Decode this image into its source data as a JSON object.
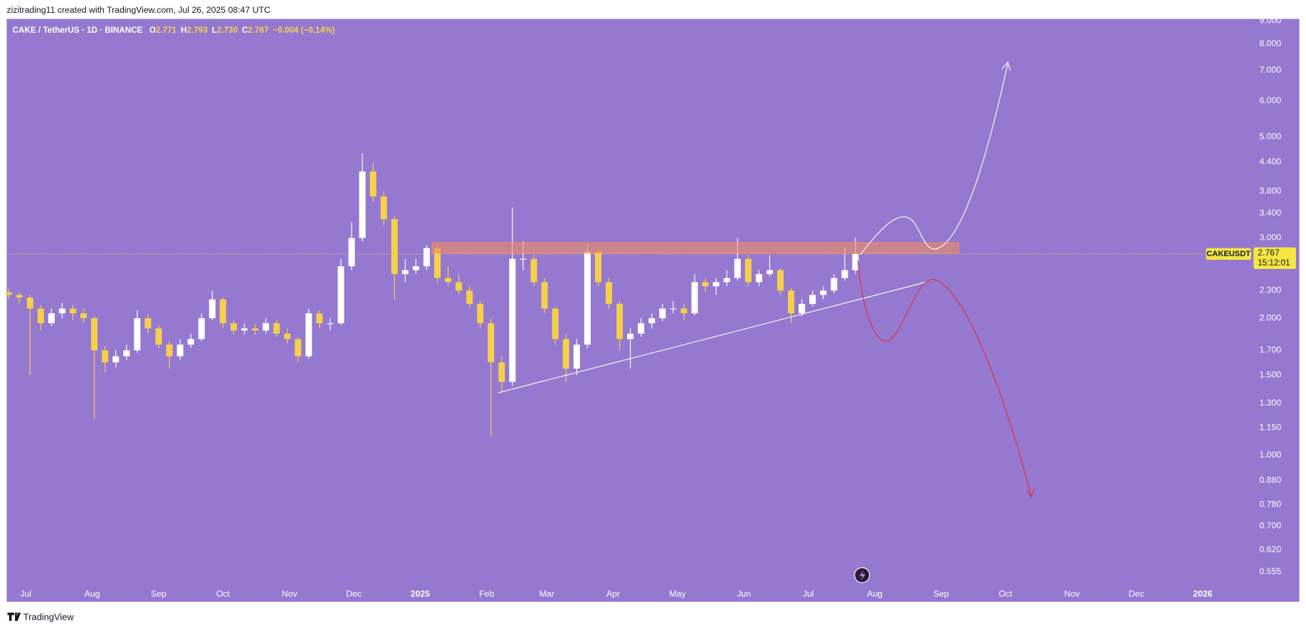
{
  "chart_data": {
    "type": "candlestick",
    "header": "zizitrading11 created with TradingView.com, Jul 26, 2025 08:47 UTC",
    "symbol": "CAKE / TetherUS · 1D · BINANCE",
    "ohlc_legend": [
      {
        "label": "O",
        "value": "2.771"
      },
      {
        "label": "H",
        "value": "2.793"
      },
      {
        "label": "L",
        "value": "2.730"
      },
      {
        "label": "C",
        "value": "2.767"
      }
    ],
    "change": "−0.004 (−0.14%)",
    "price_tag": {
      "ticker": "CAKEUSDT",
      "price": "2.767",
      "countdown": "15:12:01"
    },
    "footer": "TradingView",
    "log_scale": true,
    "grid": false,
    "up_color": "#ffffff",
    "down_color": "#f5d04a",
    "xlim": [
      -8.9,
      571.9
    ],
    "xticks": [
      {
        "value": 0,
        "label": "Jul"
      },
      {
        "value": 31,
        "label": "Aug"
      },
      {
        "value": 62,
        "label": "Sep"
      },
      {
        "value": 92,
        "label": "Oct"
      },
      {
        "value": 123,
        "label": "Nov"
      },
      {
        "value": 153,
        "label": "Dec"
      },
      {
        "value": 184,
        "label": "2025"
      },
      {
        "value": 215,
        "label": "Feb"
      },
      {
        "value": 243,
        "label": "Mar"
      },
      {
        "value": 274,
        "label": "Apr"
      },
      {
        "value": 304,
        "label": "May"
      },
      {
        "value": 335,
        "label": "Jun"
      },
      {
        "value": 365,
        "label": "Jul"
      },
      {
        "value": 396,
        "label": "Aug"
      },
      {
        "value": 427,
        "label": "Sep"
      },
      {
        "value": 457,
        "label": "Oct"
      },
      {
        "value": 488,
        "label": "Nov"
      },
      {
        "value": 518,
        "label": "Dec"
      },
      {
        "value": 549,
        "label": "2026"
      }
    ],
    "ylim": [
      0.477,
      9.08
    ],
    "yticks": [
      {
        "value": 9,
        "label": "9.000"
      },
      {
        "value": 8,
        "label": "8.000"
      },
      {
        "value": 7,
        "label": "7.000"
      },
      {
        "value": 6,
        "label": "6.000"
      },
      {
        "value": 5,
        "label": "5.000"
      },
      {
        "value": 4.4,
        "label": "4.400"
      },
      {
        "value": 3.8,
        "label": "3.800"
      },
      {
        "value": 3.4,
        "label": "3.400"
      },
      {
        "value": 3,
        "label": "3.000"
      },
      {
        "value": 2.3,
        "label": "2.300"
      },
      {
        "value": 2,
        "label": "2.000"
      },
      {
        "value": 1.7,
        "label": "1.700"
      },
      {
        "value": 1.5,
        "label": "1.500"
      },
      {
        "value": 1.3,
        "label": "1.300"
      },
      {
        "value": 1.15,
        "label": "1.150"
      },
      {
        "value": 1,
        "label": "1.000"
      },
      {
        "value": 0.88,
        "label": "0.880"
      },
      {
        "value": 0.78,
        "label": "0.780"
      },
      {
        "value": 0.7,
        "label": "0.700"
      },
      {
        "value": 0.62,
        "label": "0.620"
      },
      {
        "value": 0.555,
        "label": "0.555"
      }
    ],
    "x": [
      -8,
      -3,
      2,
      7,
      12,
      17,
      22,
      27,
      32,
      37,
      42,
      47,
      52,
      57,
      62,
      67,
      72,
      77,
      82,
      87,
      92,
      97,
      102,
      107,
      112,
      117,
      122,
      127,
      132,
      137,
      142,
      147,
      152,
      157,
      162,
      167,
      172,
      177,
      182,
      187,
      192,
      197,
      202,
      207,
      212,
      217,
      222,
      227,
      232,
      237,
      242,
      247,
      252,
      257,
      262,
      267,
      272,
      277,
      282,
      287,
      292,
      297,
      302,
      307,
      312,
      317,
      322,
      327,
      332,
      337,
      342,
      347,
      352,
      357,
      362,
      367,
      372,
      377,
      382,
      387
    ],
    "open": [
      2.28,
      2.25,
      2.22,
      2.1,
      1.95,
      2.05,
      2.1,
      2.05,
      2.0,
      1.7,
      1.6,
      1.65,
      1.7,
      2.0,
      1.9,
      1.75,
      1.65,
      1.75,
      1.8,
      2.0,
      2.2,
      1.95,
      1.88,
      1.9,
      1.88,
      1.95,
      1.85,
      1.8,
      1.65,
      2.05,
      1.95,
      1.95,
      2.6,
      3.0,
      4.2,
      3.7,
      3.3,
      2.5,
      2.55,
      2.6,
      2.85,
      2.45,
      2.4,
      2.3,
      2.15,
      1.95,
      1.6,
      1.45,
      2.7,
      2.7,
      2.4,
      2.1,
      1.8,
      1.55,
      1.75,
      2.8,
      2.4,
      2.15,
      1.8,
      1.85,
      1.95,
      2.0,
      2.1,
      2.1,
      2.05,
      2.4,
      2.35,
      2.4,
      2.45,
      2.7,
      2.4,
      2.5,
      2.55,
      2.3,
      2.05,
      2.15,
      2.25,
      2.3,
      2.45,
      2.55
    ],
    "high": [
      2.32,
      2.28,
      2.25,
      2.14,
      2.1,
      2.16,
      2.14,
      2.1,
      2.02,
      1.74,
      1.7,
      1.75,
      2.08,
      2.04,
      1.93,
      1.78,
      1.8,
      1.85,
      2.05,
      2.3,
      2.22,
      1.98,
      1.95,
      1.94,
      2.0,
      1.98,
      1.9,
      1.82,
      2.1,
      2.08,
      2.0,
      2.7,
      3.25,
      4.6,
      4.4,
      3.8,
      3.35,
      2.7,
      2.7,
      2.9,
      2.88,
      2.6,
      2.5,
      2.35,
      2.18,
      2.0,
      1.65,
      3.5,
      2.95,
      2.75,
      2.45,
      2.12,
      1.85,
      1.8,
      2.9,
      2.85,
      2.45,
      2.18,
      1.9,
      2.0,
      2.05,
      2.15,
      2.18,
      2.15,
      2.5,
      2.45,
      2.45,
      2.55,
      3.0,
      2.75,
      2.55,
      2.75,
      2.58,
      2.33,
      2.2,
      2.3,
      2.35,
      2.5,
      2.85,
      3.0
    ],
    "low": [
      2.2,
      2.15,
      1.5,
      1.88,
      1.92,
      2.0,
      1.98,
      1.95,
      1.2,
      1.52,
      1.56,
      1.62,
      1.68,
      1.85,
      1.72,
      1.55,
      1.62,
      1.72,
      1.78,
      1.98,
      1.9,
      1.84,
      1.84,
      1.84,
      1.85,
      1.82,
      1.76,
      1.6,
      1.63,
      1.9,
      1.88,
      1.93,
      2.55,
      2.95,
      3.6,
      3.2,
      2.2,
      2.4,
      2.5,
      2.55,
      2.4,
      2.35,
      2.25,
      2.1,
      1.9,
      1.1,
      1.38,
      1.42,
      2.55,
      2.35,
      2.05,
      1.75,
      1.45,
      1.5,
      1.72,
      2.35,
      2.1,
      1.7,
      1.55,
      1.82,
      1.9,
      1.97,
      2.05,
      1.98,
      2.03,
      2.28,
      2.25,
      2.35,
      2.42,
      2.35,
      2.35,
      2.47,
      2.25,
      1.95,
      2.02,
      2.12,
      2.2,
      2.27,
      2.42,
      2.5
    ],
    "close": [
      2.25,
      2.22,
      2.1,
      1.95,
      2.05,
      2.1,
      2.05,
      2.0,
      1.7,
      1.6,
      1.65,
      1.7,
      2.0,
      1.9,
      1.75,
      1.65,
      1.75,
      1.8,
      2.0,
      2.2,
      1.95,
      1.88,
      1.9,
      1.88,
      1.95,
      1.85,
      1.8,
      1.65,
      2.05,
      1.95,
      1.95,
      2.6,
      3.0,
      4.2,
      3.7,
      3.3,
      2.5,
      2.55,
      2.6,
      2.85,
      2.45,
      2.4,
      2.3,
      2.15,
      1.95,
      1.6,
      1.45,
      2.7,
      2.7,
      2.4,
      2.1,
      1.8,
      1.55,
      1.75,
      2.8,
      2.4,
      2.15,
      1.8,
      1.85,
      1.95,
      2.0,
      2.1,
      2.1,
      2.05,
      2.4,
      2.35,
      2.4,
      2.45,
      2.7,
      2.4,
      2.5,
      2.55,
      2.3,
      2.05,
      2.15,
      2.25,
      2.3,
      2.45,
      2.55,
      2.767
    ]
  }
}
